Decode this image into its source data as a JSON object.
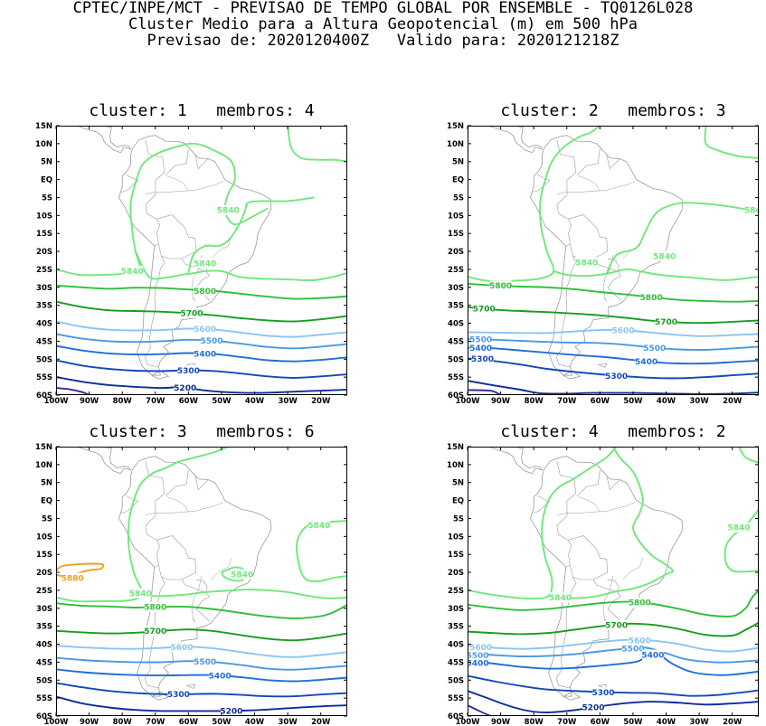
{
  "header": {
    "line1": "CPTEC/INPE/MCT - PREVISAO DE TEMPO GLOBAL POR ENSEMBLE - TQ0126L028",
    "line2": "Cluster Medio para a Altura Geopotencial (m) em 500 hPa",
    "line3": "Previsao de: 2020120400Z   Valido para: 2020121218Z"
  },
  "axes": {
    "lat_labels": [
      "15N",
      "10N",
      "5N",
      "EQ",
      "5S",
      "10S",
      "15S",
      "20S",
      "25S",
      "30S",
      "35S",
      "40S",
      "45S",
      "50S",
      "55S",
      "60S"
    ],
    "lon_labels": [
      "100W",
      "90W",
      "80W",
      "70W",
      "60W",
      "50W",
      "40W",
      "30W",
      "20W"
    ]
  },
  "colors": {
    "c5840": "#6fe87a",
    "c5800": "#2fbf3c",
    "c5700": "#189c1f",
    "c5600": "#8cc4f2",
    "c5500": "#4a98e6",
    "c5400": "#1f6fd6",
    "c5300": "#1248b8",
    "c5200": "#0c2e9a",
    "c5100": "#4a1f9a",
    "c5880": "#f0a020",
    "coast": "#9a9a9a"
  },
  "panels": [
    {
      "title": "cluster: 1   membros: 4",
      "contours": [
        {
          "level": 5840,
          "label": "5840"
        },
        {
          "level": 5800,
          "label": "5800"
        },
        {
          "level": 5700,
          "label": "5700"
        },
        {
          "level": 5600,
          "label": "5600"
        },
        {
          "level": 5500,
          "label": "5500"
        },
        {
          "level": 5400,
          "label": "5400"
        },
        {
          "level": 5300,
          "label": "5300"
        },
        {
          "level": 5200,
          "label": "5200"
        }
      ]
    },
    {
      "title": "cluster: 2   membros: 3",
      "contours": [
        {
          "level": 5840,
          "label": "5840"
        },
        {
          "level": 5800,
          "label": "5800"
        },
        {
          "level": 5700,
          "label": "5700"
        },
        {
          "level": 5600,
          "label": "5600"
        },
        {
          "level": 5500,
          "label": "5500"
        },
        {
          "level": 5400,
          "label": "5400"
        },
        {
          "level": 5300,
          "label": "5300"
        }
      ]
    },
    {
      "title": "cluster: 3   membros: 6",
      "contours": [
        {
          "level": 5880,
          "label": "5880"
        },
        {
          "level": 5840,
          "label": "5840"
        },
        {
          "level": 5800,
          "label": "5800"
        },
        {
          "level": 5700,
          "label": "5700"
        },
        {
          "level": 5600,
          "label": "5600"
        },
        {
          "level": 5500,
          "label": "5500"
        },
        {
          "level": 5400,
          "label": "5400"
        },
        {
          "level": 5300,
          "label": "5300"
        },
        {
          "level": 5200,
          "label": "5200"
        }
      ]
    },
    {
      "title": "cluster: 4   membros: 2",
      "contours": [
        {
          "level": 5840,
          "label": "5840"
        },
        {
          "level": 5800,
          "label": "5800"
        },
        {
          "level": 5700,
          "label": "5700"
        },
        {
          "level": 5600,
          "label": "5600"
        },
        {
          "level": 5500,
          "label": "5500"
        },
        {
          "level": 5400,
          "label": "5400"
        },
        {
          "level": 5300,
          "label": "5300"
        },
        {
          "level": 5200,
          "label": "5200"
        }
      ]
    }
  ]
}
